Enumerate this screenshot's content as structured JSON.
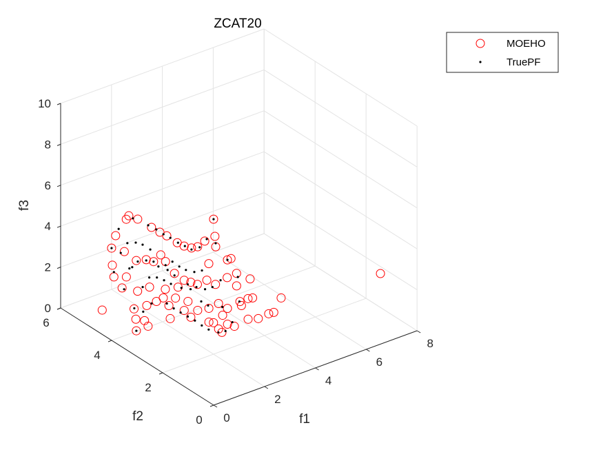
{
  "chart_data": {
    "type": "scatter",
    "dimensions": 3,
    "title": "ZCAT20",
    "xlabel": "f1",
    "ylabel": "f2",
    "zlabel": "f3",
    "xlim": [
      0,
      8
    ],
    "ylim": [
      0,
      6
    ],
    "zlim": [
      0,
      10
    ],
    "xticks": [
      "0",
      "2",
      "4",
      "6",
      "8"
    ],
    "yticks": [
      "0",
      "2",
      "4",
      "6"
    ],
    "zticks": [
      "0",
      "2",
      "4",
      "6",
      "8",
      "10"
    ],
    "grid": true,
    "legend_position": "top-right",
    "series": [
      {
        "name": "MOEHO",
        "marker": "circle-open",
        "color": "#ff0000",
        "points": [
          [
            2.51,
            5.83,
            3.5
          ],
          [
            2.6,
            5.57,
            3.5
          ],
          [
            2.31,
            5.73,
            3.5
          ],
          [
            2.62,
            5.05,
            3.5
          ],
          [
            2.64,
            4.74,
            3.5
          ],
          [
            2.67,
            4.5,
            3.5
          ],
          [
            2.66,
            4.08,
            3.5
          ],
          [
            2.7,
            3.85,
            3.5
          ],
          [
            2.81,
            3.67,
            3.5
          ],
          [
            3.01,
            3.63,
            3.5
          ],
          [
            3.41,
            3.75,
            3.5
          ],
          [
            3.85,
            3.79,
            3.5
          ],
          [
            3.46,
            3.37,
            3.5
          ],
          [
            4.49,
            4.48,
            3.5
          ],
          [
            1.4,
            5.24,
            3.5
          ],
          [
            0.81,
            4.81,
            3.5
          ],
          [
            0.99,
            4.49,
            3.5
          ],
          [
            0.94,
            3.97,
            3.5
          ],
          [
            1.22,
            3.86,
            3.5
          ],
          [
            2.13,
            4.48,
            2.5
          ],
          [
            1.77,
            3.84,
            3.5
          ],
          [
            2.43,
            4.31,
            2.5
          ],
          [
            0.96,
            4.93,
            2.5
          ],
          [
            0.54,
            4.45,
            2.5
          ],
          [
            0.85,
            4.27,
            2.5
          ],
          [
            0.31,
            3.9,
            2.5
          ],
          [
            0.57,
            3.55,
            2.5
          ],
          [
            1.03,
            3.54,
            2.5
          ],
          [
            1.34,
            3.23,
            2.5
          ],
          [
            2.19,
            3.72,
            2.5
          ],
          [
            1.74,
            3.13,
            2.5
          ],
          [
            2.16,
            3.31,
            2.5
          ],
          [
            2.25,
            3.14,
            2.5
          ],
          [
            2.33,
            2.96,
            2.5
          ],
          [
            2.73,
            2.99,
            2.5
          ],
          [
            2.78,
            2.7,
            2.5
          ],
          [
            3.43,
            3.61,
            2.5
          ],
          [
            3.24,
            2.69,
            3.5
          ],
          [
            3.38,
            2.69,
            3.5
          ],
          [
            3.34,
            2.8,
            2.5
          ],
          [
            3.74,
            2.83,
            2.5
          ],
          [
            3.86,
            2.42,
            2.5
          ],
          [
            3.25,
            2.34,
            2.5
          ],
          [
            4.69,
            2.03,
            1.5
          ],
          [
            0.15,
            4.52,
            1.0
          ],
          [
            0.59,
            3.71,
            1.5
          ],
          [
            0.23,
            3.28,
            1.5
          ],
          [
            0.19,
            3.22,
            1.0
          ],
          [
            0.39,
            3.1,
            1.5
          ],
          [
            0.26,
            2.83,
            1.5
          ],
          [
            1.44,
            3.68,
            1.5
          ],
          [
            1.04,
            3.66,
            1.5
          ],
          [
            1.75,
            3.72,
            1.5
          ],
          [
            1.59,
            3.34,
            1.5
          ],
          [
            2.05,
            3.54,
            1.5
          ],
          [
            1.78,
            2.93,
            1.5
          ],
          [
            2.23,
            3.23,
            1.5
          ],
          [
            1.11,
            2.81,
            1.5
          ],
          [
            1.68,
            2.57,
            1.5
          ],
          [
            2.12,
            2.74,
            1.5
          ],
          [
            2.48,
            2.66,
            1.5
          ],
          [
            2.91,
            2.71,
            1.5
          ],
          [
            2.55,
            2.19,
            1.5
          ],
          [
            2.94,
            2.39,
            1.5
          ],
          [
            3.52,
            2.48,
            1.5
          ],
          [
            3.84,
            2.48,
            1.5
          ],
          [
            3.98,
            2.44,
            1.5
          ],
          [
            1.94,
            2.12,
            1.5
          ],
          [
            1.91,
            1.71,
            1.5
          ],
          [
            2.32,
            1.77,
            1.5
          ],
          [
            2.41,
            1.59,
            1.5
          ],
          [
            3.03,
            1.67,
            1.5
          ],
          [
            3.31,
            1.55,
            1.5
          ],
          [
            3.76,
            1.59,
            1.5
          ],
          [
            3.94,
            1.57,
            1.5
          ],
          [
            1.86,
            1.53,
            1.5
          ],
          [
            2.03,
            2.03,
            1.5
          ],
          [
            3.4,
            2.3,
            1.5
          ],
          [
            6.56,
            0.0,
            3.45
          ]
        ]
      },
      {
        "name": "TruePF",
        "marker": "point",
        "color": "#000000",
        "points": [
          [
            2.51,
            5.67,
            3.5
          ],
          [
            2.62,
            5.18,
            3.5
          ],
          [
            2.66,
            4.9,
            3.5
          ],
          [
            2.65,
            4.61,
            3.5
          ],
          [
            2.68,
            4.37,
            3.5
          ],
          [
            2.68,
            4.07,
            3.5
          ],
          [
            2.72,
            3.84,
            3.5
          ],
          [
            2.75,
            3.61,
            3.5
          ],
          [
            3.04,
            3.58,
            3.5
          ],
          [
            3.54,
            3.8,
            3.5
          ],
          [
            3.6,
            3.51,
            3.5
          ],
          [
            4.49,
            4.48,
            3.5
          ],
          [
            1.74,
            5.46,
            3.5
          ],
          [
            0.81,
            4.81,
            3.5
          ],
          [
            0.85,
            4.49,
            3.5
          ],
          [
            1.4,
            4.78,
            3.5
          ],
          [
            1.63,
            4.68,
            3.5
          ],
          [
            1.72,
            4.5,
            3.5
          ],
          [
            1.72,
            4.2,
            3.5
          ],
          [
            1.74,
            4.71,
            2.5
          ],
          [
            1.19,
            3.83,
            3.5
          ],
          [
            2.13,
            4.48,
            2.5
          ],
          [
            2.06,
            4.22,
            2.5
          ],
          [
            2.29,
            4.17,
            2.5
          ],
          [
            2.6,
            4.21,
            2.5
          ],
          [
            2.58,
            3.92,
            2.5
          ],
          [
            2.61,
            3.69,
            2.5
          ],
          [
            2.74,
            3.49,
            2.5
          ],
          [
            2.99,
            3.44,
            2.5
          ],
          [
            1.26,
            4.56,
            2.5
          ],
          [
            1.38,
            4.57,
            2.5
          ],
          [
            0.73,
            4.64,
            2.5
          ],
          [
            2.11,
            3.64,
            2.5
          ],
          [
            2.15,
            3.95,
            2.5
          ],
          [
            1.4,
            3.92,
            2.5
          ],
          [
            1.59,
            3.81,
            2.5
          ],
          [
            1.66,
            3.6,
            2.5
          ],
          [
            1.69,
            3.36,
            2.5
          ],
          [
            0.86,
            3.64,
            2.5
          ],
          [
            0.31,
            3.82,
            2.5
          ],
          [
            2.09,
            3.1,
            2.5
          ],
          [
            2.2,
            2.87,
            2.5
          ],
          [
            2.33,
            2.66,
            2.5
          ],
          [
            2.6,
            2.64,
            2.5
          ],
          [
            3.07,
            2.79,
            2.5
          ],
          [
            3.24,
            2.69,
            3.5
          ],
          [
            3.63,
            2.67,
            2.5
          ],
          [
            0.62,
            3.73,
            1.5
          ],
          [
            0.71,
            3.47,
            1.5
          ],
          [
            1.24,
            3.67,
            1.5
          ],
          [
            1.62,
            3.45,
            1.5
          ],
          [
            1.6,
            3.16,
            1.5
          ],
          [
            1.61,
            2.9,
            1.5
          ],
          [
            1.63,
            2.64,
            1.5
          ],
          [
            1.65,
            2.38,
            1.5
          ],
          [
            2.56,
            3.04,
            1.5
          ],
          [
            2.57,
            2.78,
            1.5
          ],
          [
            2.87,
            2.52,
            1.5
          ],
          [
            0.19,
            3.22,
            1.0
          ],
          [
            1.63,
            2.09,
            1.5
          ],
          [
            1.64,
            1.83,
            1.5
          ],
          [
            1.77,
            1.58,
            1.5
          ],
          [
            2.0,
            1.53,
            1.5
          ],
          [
            2.52,
            1.78,
            1.5
          ],
          [
            3.51,
            2.49,
            1.5
          ],
          [
            1.79,
            3.05,
            2.5
          ],
          [
            1.97,
            2.87,
            2.5
          ]
        ]
      }
    ]
  }
}
